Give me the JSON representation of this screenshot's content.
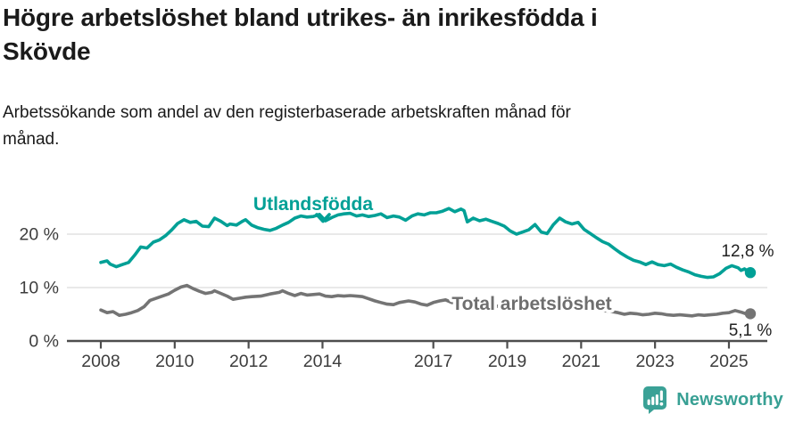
{
  "header": {
    "title_lines": [
      "Högre arbetslöshet bland utrikes- än inrikesfödda i",
      "Skövde"
    ],
    "subtitle_lines": [
      "Arbetssökande som andel av den registerbaserade arbetskraften månad för",
      "månad."
    ]
  },
  "chart_data": {
    "type": "line",
    "title": "Högre arbetslöshet bland utrikes- än inrikesfödda i Skövde",
    "subtitle": "Arbetssökande som andel av den registerbaserade arbetskraften månad för månad.",
    "unit": "%",
    "grid": "horizontal-only",
    "legend_position": "inline-annotations",
    "x_range": [
      2008,
      2025.58
    ],
    "ylim": [
      0,
      26
    ],
    "x_ticks": [
      "2008",
      "2010",
      "2012",
      "2014",
      "2017",
      "2019",
      "2021",
      "2023",
      "2025"
    ],
    "x_tick_years": [
      2008,
      2010,
      2012,
      2014,
      2017,
      2019,
      2021,
      2023,
      2025
    ],
    "y_ticks": [
      {
        "value": 0,
        "label": "0 %"
      },
      {
        "value": 10,
        "label": "10 %"
      },
      {
        "value": 20,
        "label": "20 %"
      }
    ],
    "series": [
      {
        "name": "Utlandsfödda",
        "color": "#00a096",
        "end_label": "12,8 %",
        "end_value": 12.8,
        "points": [
          [
            2008.0,
            14.7
          ],
          [
            2008.17,
            15.0
          ],
          [
            2008.25,
            14.4
          ],
          [
            2008.42,
            13.9
          ],
          [
            2008.58,
            14.3
          ],
          [
            2008.75,
            14.7
          ],
          [
            2008.92,
            16.1
          ],
          [
            2009.08,
            17.6
          ],
          [
            2009.25,
            17.4
          ],
          [
            2009.42,
            18.5
          ],
          [
            2009.58,
            18.9
          ],
          [
            2009.75,
            19.7
          ],
          [
            2009.92,
            20.8
          ],
          [
            2010.08,
            22.0
          ],
          [
            2010.25,
            22.7
          ],
          [
            2010.42,
            22.2
          ],
          [
            2010.58,
            22.4
          ],
          [
            2010.75,
            21.5
          ],
          [
            2010.92,
            21.4
          ],
          [
            2011.08,
            23.0
          ],
          [
            2011.25,
            22.4
          ],
          [
            2011.42,
            21.6
          ],
          [
            2011.5,
            21.9
          ],
          [
            2011.67,
            21.7
          ],
          [
            2011.83,
            22.4
          ],
          [
            2011.92,
            22.7
          ],
          [
            2012.08,
            21.7
          ],
          [
            2012.25,
            21.2
          ],
          [
            2012.42,
            20.9
          ],
          [
            2012.58,
            20.7
          ],
          [
            2012.75,
            21.1
          ],
          [
            2012.92,
            21.7
          ],
          [
            2013.08,
            22.2
          ],
          [
            2013.25,
            23.0
          ],
          [
            2013.42,
            23.4
          ],
          [
            2013.58,
            23.2
          ],
          [
            2013.75,
            23.3
          ],
          [
            2013.92,
            23.7
          ],
          [
            2014.08,
            22.5
          ],
          [
            2014.25,
            23.1
          ],
          [
            2014.42,
            23.6
          ],
          [
            2014.58,
            23.8
          ],
          [
            2014.75,
            23.9
          ],
          [
            2014.92,
            23.4
          ],
          [
            2015.08,
            23.6
          ],
          [
            2015.25,
            23.3
          ],
          [
            2015.42,
            23.5
          ],
          [
            2015.58,
            23.8
          ],
          [
            2015.75,
            23.1
          ],
          [
            2015.92,
            23.4
          ],
          [
            2016.08,
            23.2
          ],
          [
            2016.25,
            22.6
          ],
          [
            2016.42,
            23.4
          ],
          [
            2016.58,
            23.8
          ],
          [
            2016.75,
            23.6
          ],
          [
            2016.92,
            24.0
          ],
          [
            2017.08,
            24.0
          ],
          [
            2017.25,
            24.3
          ],
          [
            2017.42,
            24.8
          ],
          [
            2017.58,
            24.2
          ],
          [
            2017.75,
            24.7
          ],
          [
            2017.83,
            24.4
          ],
          [
            2017.92,
            22.3
          ],
          [
            2018.08,
            23.0
          ],
          [
            2018.25,
            22.5
          ],
          [
            2018.42,
            22.8
          ],
          [
            2018.58,
            22.4
          ],
          [
            2018.75,
            22.0
          ],
          [
            2018.92,
            21.5
          ],
          [
            2019.08,
            20.6
          ],
          [
            2019.25,
            20.0
          ],
          [
            2019.42,
            20.4
          ],
          [
            2019.58,
            20.8
          ],
          [
            2019.75,
            21.8
          ],
          [
            2019.92,
            20.4
          ],
          [
            2020.08,
            20.1
          ],
          [
            2020.25,
            21.8
          ],
          [
            2020.42,
            23.0
          ],
          [
            2020.58,
            22.3
          ],
          [
            2020.75,
            21.9
          ],
          [
            2020.92,
            22.2
          ],
          [
            2021.08,
            20.9
          ],
          [
            2021.25,
            20.1
          ],
          [
            2021.42,
            19.3
          ],
          [
            2021.58,
            18.6
          ],
          [
            2021.75,
            18.1
          ],
          [
            2021.92,
            17.2
          ],
          [
            2022.08,
            16.4
          ],
          [
            2022.25,
            15.7
          ],
          [
            2022.42,
            15.1
          ],
          [
            2022.58,
            14.8
          ],
          [
            2022.75,
            14.3
          ],
          [
            2022.92,
            14.8
          ],
          [
            2023.08,
            14.3
          ],
          [
            2023.25,
            14.1
          ],
          [
            2023.42,
            14.4
          ],
          [
            2023.58,
            13.8
          ],
          [
            2023.75,
            13.3
          ],
          [
            2023.92,
            12.9
          ],
          [
            2024.08,
            12.4
          ],
          [
            2024.25,
            12.1
          ],
          [
            2024.42,
            11.9
          ],
          [
            2024.58,
            12.0
          ],
          [
            2024.75,
            12.6
          ],
          [
            2024.92,
            13.6
          ],
          [
            2025.08,
            14.1
          ],
          [
            2025.25,
            13.7
          ],
          [
            2025.33,
            13.2
          ],
          [
            2025.42,
            13.5
          ],
          [
            2025.58,
            12.8
          ]
        ]
      },
      {
        "name": "Total arbetslöshet",
        "color": "#747474",
        "end_label": "5,1 %",
        "end_value": 5.1,
        "points": [
          [
            2008.0,
            5.8
          ],
          [
            2008.17,
            5.3
          ],
          [
            2008.33,
            5.5
          ],
          [
            2008.5,
            4.8
          ],
          [
            2008.67,
            5.0
          ],
          [
            2008.83,
            5.3
          ],
          [
            2009.0,
            5.7
          ],
          [
            2009.17,
            6.4
          ],
          [
            2009.33,
            7.6
          ],
          [
            2009.58,
            8.2
          ],
          [
            2009.83,
            8.8
          ],
          [
            2010.0,
            9.5
          ],
          [
            2010.17,
            10.1
          ],
          [
            2010.33,
            10.4
          ],
          [
            2010.5,
            9.8
          ],
          [
            2010.67,
            9.3
          ],
          [
            2010.83,
            8.9
          ],
          [
            2011.0,
            9.1
          ],
          [
            2011.08,
            9.4
          ],
          [
            2011.25,
            8.9
          ],
          [
            2011.42,
            8.4
          ],
          [
            2011.58,
            7.8
          ],
          [
            2011.75,
            8.0
          ],
          [
            2011.92,
            8.2
          ],
          [
            2012.08,
            8.3
          ],
          [
            2012.33,
            8.4
          ],
          [
            2012.58,
            8.8
          ],
          [
            2012.83,
            9.1
          ],
          [
            2012.92,
            9.4
          ],
          [
            2013.08,
            8.9
          ],
          [
            2013.25,
            8.5
          ],
          [
            2013.42,
            8.9
          ],
          [
            2013.58,
            8.6
          ],
          [
            2013.75,
            8.7
          ],
          [
            2013.92,
            8.8
          ],
          [
            2014.08,
            8.4
          ],
          [
            2014.25,
            8.3
          ],
          [
            2014.42,
            8.5
          ],
          [
            2014.58,
            8.4
          ],
          [
            2014.75,
            8.5
          ],
          [
            2014.92,
            8.4
          ],
          [
            2015.08,
            8.3
          ],
          [
            2015.25,
            7.9
          ],
          [
            2015.42,
            7.5
          ],
          [
            2015.58,
            7.2
          ],
          [
            2015.75,
            6.9
          ],
          [
            2015.92,
            6.8
          ],
          [
            2016.08,
            7.2
          ],
          [
            2016.33,
            7.5
          ],
          [
            2016.5,
            7.3
          ],
          [
            2016.67,
            6.9
          ],
          [
            2016.83,
            6.7
          ],
          [
            2017.0,
            7.2
          ],
          [
            2017.17,
            7.5
          ],
          [
            2017.33,
            7.7
          ],
          [
            2017.5,
            7.2
          ],
          [
            2017.67,
            7.2
          ],
          [
            2017.83,
            7.0
          ],
          [
            2018.0,
            6.9
          ],
          [
            2018.5,
            6.6
          ],
          [
            2019.0,
            6.4
          ],
          [
            2019.5,
            6.3
          ],
          [
            2020.0,
            6.6
          ],
          [
            2020.5,
            6.6
          ],
          [
            2021.0,
            6.2
          ],
          [
            2021.5,
            5.8
          ],
          [
            2021.83,
            5.5
          ],
          [
            2022.0,
            5.3
          ],
          [
            2022.17,
            5.0
          ],
          [
            2022.33,
            5.2
          ],
          [
            2022.5,
            5.1
          ],
          [
            2022.67,
            4.9
          ],
          [
            2022.83,
            5.0
          ],
          [
            2023.0,
            5.2
          ],
          [
            2023.17,
            5.1
          ],
          [
            2023.33,
            4.9
          ],
          [
            2023.5,
            4.8
          ],
          [
            2023.67,
            4.9
          ],
          [
            2023.83,
            4.8
          ],
          [
            2024.0,
            4.7
          ],
          [
            2024.17,
            4.9
          ],
          [
            2024.33,
            4.8
          ],
          [
            2024.5,
            4.9
          ],
          [
            2024.67,
            5.0
          ],
          [
            2024.83,
            5.2
          ],
          [
            2025.0,
            5.3
          ],
          [
            2025.17,
            5.7
          ],
          [
            2025.33,
            5.4
          ],
          [
            2025.5,
            5.0
          ],
          [
            2025.58,
            5.1
          ]
        ]
      }
    ],
    "colors": {
      "accent_teal": "#00a096",
      "line_gray": "#747474",
      "axis": "#4d4d4d",
      "gridline": "#dcdcdc",
      "text": "#1a1a1a"
    }
  },
  "footer": {
    "brand": "Newsworthy",
    "brand_color": "#38a094",
    "logo_icon": "bar-chart-speech-bubble"
  }
}
